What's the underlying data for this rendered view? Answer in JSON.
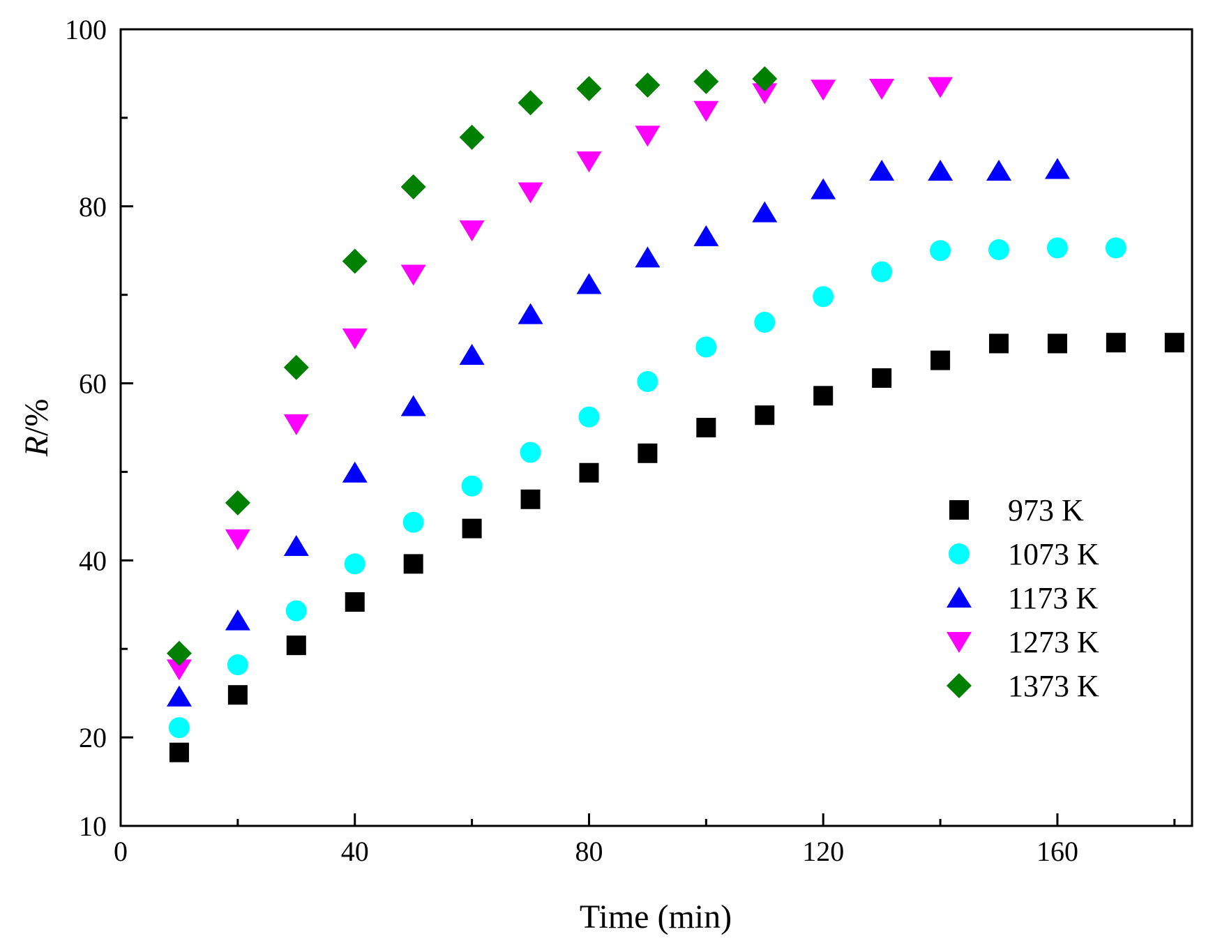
{
  "chart_data": {
    "type": "scatter",
    "title": "",
    "xlabel": "Time (min)",
    "ylabel_italic": "R",
    "ylabel_suffix": "/%",
    "xlim": [
      0,
      183
    ],
    "ylim": [
      10,
      100
    ],
    "x_ticks": [
      "0",
      "40",
      "80",
      "120",
      "160"
    ],
    "y_ticks": [
      "10",
      "20",
      "40",
      "60",
      "80",
      "100"
    ],
    "legend_position": "right-middle",
    "series": [
      {
        "name": "973 K",
        "marker": "square",
        "color": "#000000",
        "x": [
          10,
          20,
          30,
          40,
          50,
          60,
          70,
          80,
          90,
          100,
          110,
          120,
          130,
          140,
          150,
          160,
          170,
          180
        ],
        "y": [
          18.3,
          24.8,
          30.4,
          35.3,
          39.6,
          43.6,
          46.9,
          49.9,
          52.1,
          55.0,
          56.4,
          58.6,
          60.6,
          62.6,
          64.5,
          64.5,
          64.6,
          64.6
        ]
      },
      {
        "name": "1073 K",
        "marker": "circle",
        "color": "#00ffff",
        "x": [
          10,
          20,
          30,
          40,
          50,
          60,
          70,
          80,
          90,
          100,
          110,
          120,
          130,
          140,
          150,
          160,
          170
        ],
        "y": [
          21.1,
          28.2,
          34.3,
          39.6,
          44.3,
          48.4,
          52.2,
          56.2,
          60.2,
          64.1,
          66.9,
          69.8,
          72.6,
          75.0,
          75.1,
          75.3,
          75.3
        ]
      },
      {
        "name": "1173 K",
        "marker": "triangle-up",
        "color": "#0000ff",
        "x": [
          10,
          20,
          30,
          40,
          50,
          60,
          70,
          80,
          90,
          100,
          110,
          120,
          130,
          140,
          150,
          160
        ],
        "y": [
          24.6,
          33.2,
          41.6,
          49.9,
          57.4,
          63.2,
          67.8,
          71.2,
          74.2,
          76.6,
          79.3,
          81.9,
          84.0,
          84.0,
          84.0,
          84.2
        ]
      },
      {
        "name": "1273 K",
        "marker": "triangle-down",
        "color": "#ff00ff",
        "x": [
          10,
          20,
          30,
          40,
          50,
          60,
          70,
          80,
          90,
          100,
          110,
          120,
          130,
          140
        ],
        "y": [
          27.7,
          42.4,
          55.4,
          65.1,
          72.3,
          77.3,
          81.6,
          85.1,
          88.0,
          90.8,
          92.8,
          93.2,
          93.3,
          93.5
        ]
      },
      {
        "name": "1373 K",
        "marker": "diamond",
        "color": "#008000",
        "x": [
          10,
          20,
          30,
          40,
          50,
          60,
          70,
          80,
          90,
          100,
          110
        ],
        "y": [
          29.5,
          46.5,
          61.8,
          73.8,
          82.2,
          87.8,
          91.7,
          93.3,
          93.7,
          94.1,
          94.4
        ]
      }
    ]
  }
}
